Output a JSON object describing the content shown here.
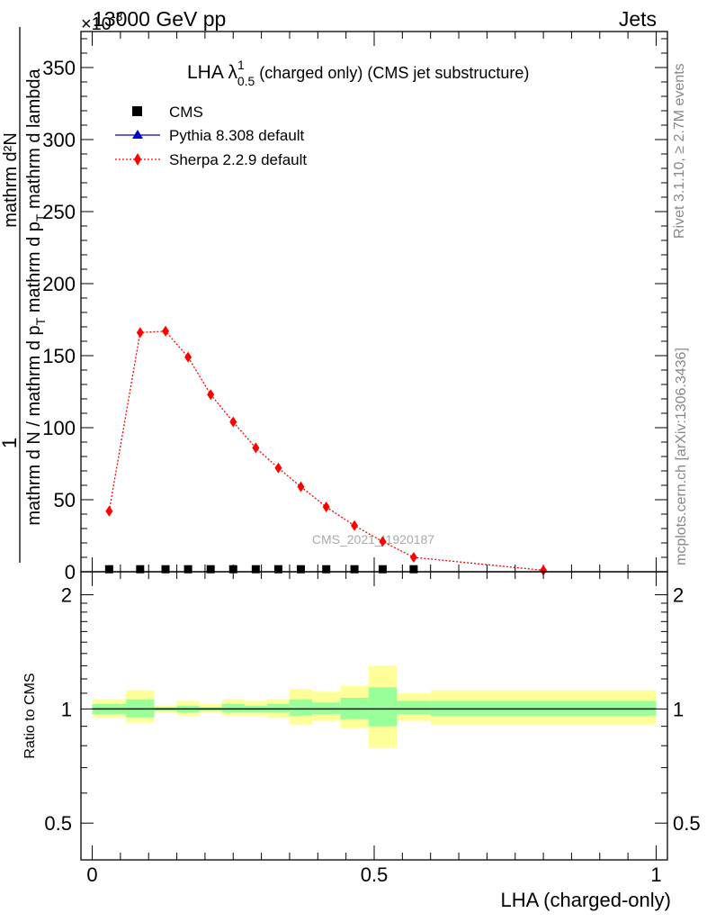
{
  "header": {
    "energy": "13000 GeV pp",
    "category": "Jets",
    "multiplier": "×10",
    "multiplier_exp": "-3"
  },
  "side_labels": {
    "rivet": "Rivet 3.1.10, ≥ 2.7M events",
    "mcplots": "mcplots.cern.ch [arXiv:1306.3436]"
  },
  "watermark": "CMS_2021_I1920187",
  "colors": {
    "cms": "#000000",
    "pythia": "#0000cc",
    "sherpa": "#ff0000",
    "band_inner": "#99ff99",
    "band_outer": "#ffff99"
  },
  "chart_data": [
    {
      "type": "line",
      "title_main": "LHA λ",
      "title_sup": "1",
      "title_sub": "0.5",
      "title_rest": " (charged only) (CMS jet substructure)",
      "ylabel_line1": "1",
      "ylabel_line2": "mathrm d N / mathrm d p_T mathrm d p_T mathrm d lambda",
      "ylabel_num": "mathrm d²N",
      "ylabel_den_a": "mathrm d N / mathrm d p",
      "ylabel_den_b": "T",
      "ylabel_den_c": " mathrm d p",
      "ylabel_den_d": "T",
      "ylabel_den_e": " mathrm d lambda",
      "xlim": [
        -0.02,
        1.02
      ],
      "ylim": [
        0,
        375
      ],
      "yticks": [
        0,
        50,
        100,
        150,
        200,
        250,
        300,
        350
      ],
      "ytick_labels": [
        "0",
        "50",
        "100",
        "150",
        "200",
        "250",
        "300",
        "350"
      ],
      "legend": [
        {
          "name": "CMS",
          "marker": "square"
        },
        {
          "name": "Pythia 8.308 default",
          "marker": "triangle"
        },
        {
          "name": "Sherpa 2.2.9 default",
          "marker": "diamond"
        }
      ],
      "series": [
        {
          "name": "CMS",
          "x": [
            0.03,
            0.085,
            0.13,
            0.17,
            0.21,
            0.25,
            0.29,
            0.33,
            0.37,
            0.415,
            0.465,
            0.515,
            0.57
          ],
          "y": [
            0.5,
            0.5,
            0.5,
            0.5,
            0.5,
            0.5,
            0.5,
            0.5,
            0.5,
            0.5,
            0.5,
            0.5,
            0.5
          ]
        },
        {
          "name": "Pythia 8.308 default",
          "x": [],
          "y": []
        },
        {
          "name": "Sherpa 2.2.9 default",
          "x": [
            0.03,
            0.085,
            0.13,
            0.17,
            0.21,
            0.25,
            0.29,
            0.33,
            0.37,
            0.415,
            0.465,
            0.515,
            0.57,
            0.8
          ],
          "y": [
            42,
            166,
            167,
            149,
            123,
            104,
            86,
            72,
            59,
            45,
            32,
            21,
            10,
            1
          ]
        }
      ]
    },
    {
      "type": "area",
      "ylabel": "Ratio to CMS",
      "xlabel": "LHA (charged-only)",
      "xlim": [
        -0.02,
        1.02
      ],
      "ylim": [
        0.4,
        2.3
      ],
      "log_scale_y": true,
      "yticks": [
        0.5,
        1,
        2
      ],
      "ytick_labels": [
        "0.5",
        "1",
        "2"
      ],
      "xticks": [
        0,
        0.5,
        1
      ],
      "xtick_labels": [
        "0",
        "0.5",
        "1"
      ],
      "bands": [
        {
          "x0": 0.0,
          "x1": 0.06,
          "inner": [
            0.97,
            1.03
          ],
          "outer": [
            0.95,
            1.06
          ]
        },
        {
          "x0": 0.06,
          "x1": 0.11,
          "inner": [
            0.95,
            1.06
          ],
          "outer": [
            0.92,
            1.12
          ]
        },
        {
          "x0": 0.11,
          "x1": 0.15,
          "inner": [
            0.99,
            1.01
          ],
          "outer": [
            0.98,
            1.02
          ]
        },
        {
          "x0": 0.15,
          "x1": 0.19,
          "inner": [
            0.98,
            1.02
          ],
          "outer": [
            0.96,
            1.05
          ]
        },
        {
          "x0": 0.19,
          "x1": 0.23,
          "inner": [
            0.99,
            1.01
          ],
          "outer": [
            0.98,
            1.03
          ]
        },
        {
          "x0": 0.23,
          "x1": 0.27,
          "inner": [
            0.98,
            1.03
          ],
          "outer": [
            0.96,
            1.06
          ]
        },
        {
          "x0": 0.27,
          "x1": 0.31,
          "inner": [
            0.98,
            1.02
          ],
          "outer": [
            0.96,
            1.05
          ]
        },
        {
          "x0": 0.31,
          "x1": 0.35,
          "inner": [
            0.98,
            1.03
          ],
          "outer": [
            0.95,
            1.06
          ]
        },
        {
          "x0": 0.35,
          "x1": 0.39,
          "inner": [
            0.96,
            1.06
          ],
          "outer": [
            0.91,
            1.13
          ]
        },
        {
          "x0": 0.39,
          "x1": 0.44,
          "inner": [
            0.97,
            1.04
          ],
          "outer": [
            0.93,
            1.11
          ]
        },
        {
          "x0": 0.44,
          "x1": 0.49,
          "inner": [
            0.94,
            1.07
          ],
          "outer": [
            0.89,
            1.15
          ]
        },
        {
          "x0": 0.49,
          "x1": 0.54,
          "inner": [
            0.9,
            1.14
          ],
          "outer": [
            0.79,
            1.3
          ]
        },
        {
          "x0": 0.54,
          "x1": 0.6,
          "inner": [
            0.97,
            1.05
          ],
          "outer": [
            0.93,
            1.1
          ]
        },
        {
          "x0": 0.6,
          "x1": 1.0,
          "inner": [
            0.96,
            1.05
          ],
          "outer": [
            0.91,
            1.12
          ]
        }
      ],
      "reference": 1
    }
  ]
}
